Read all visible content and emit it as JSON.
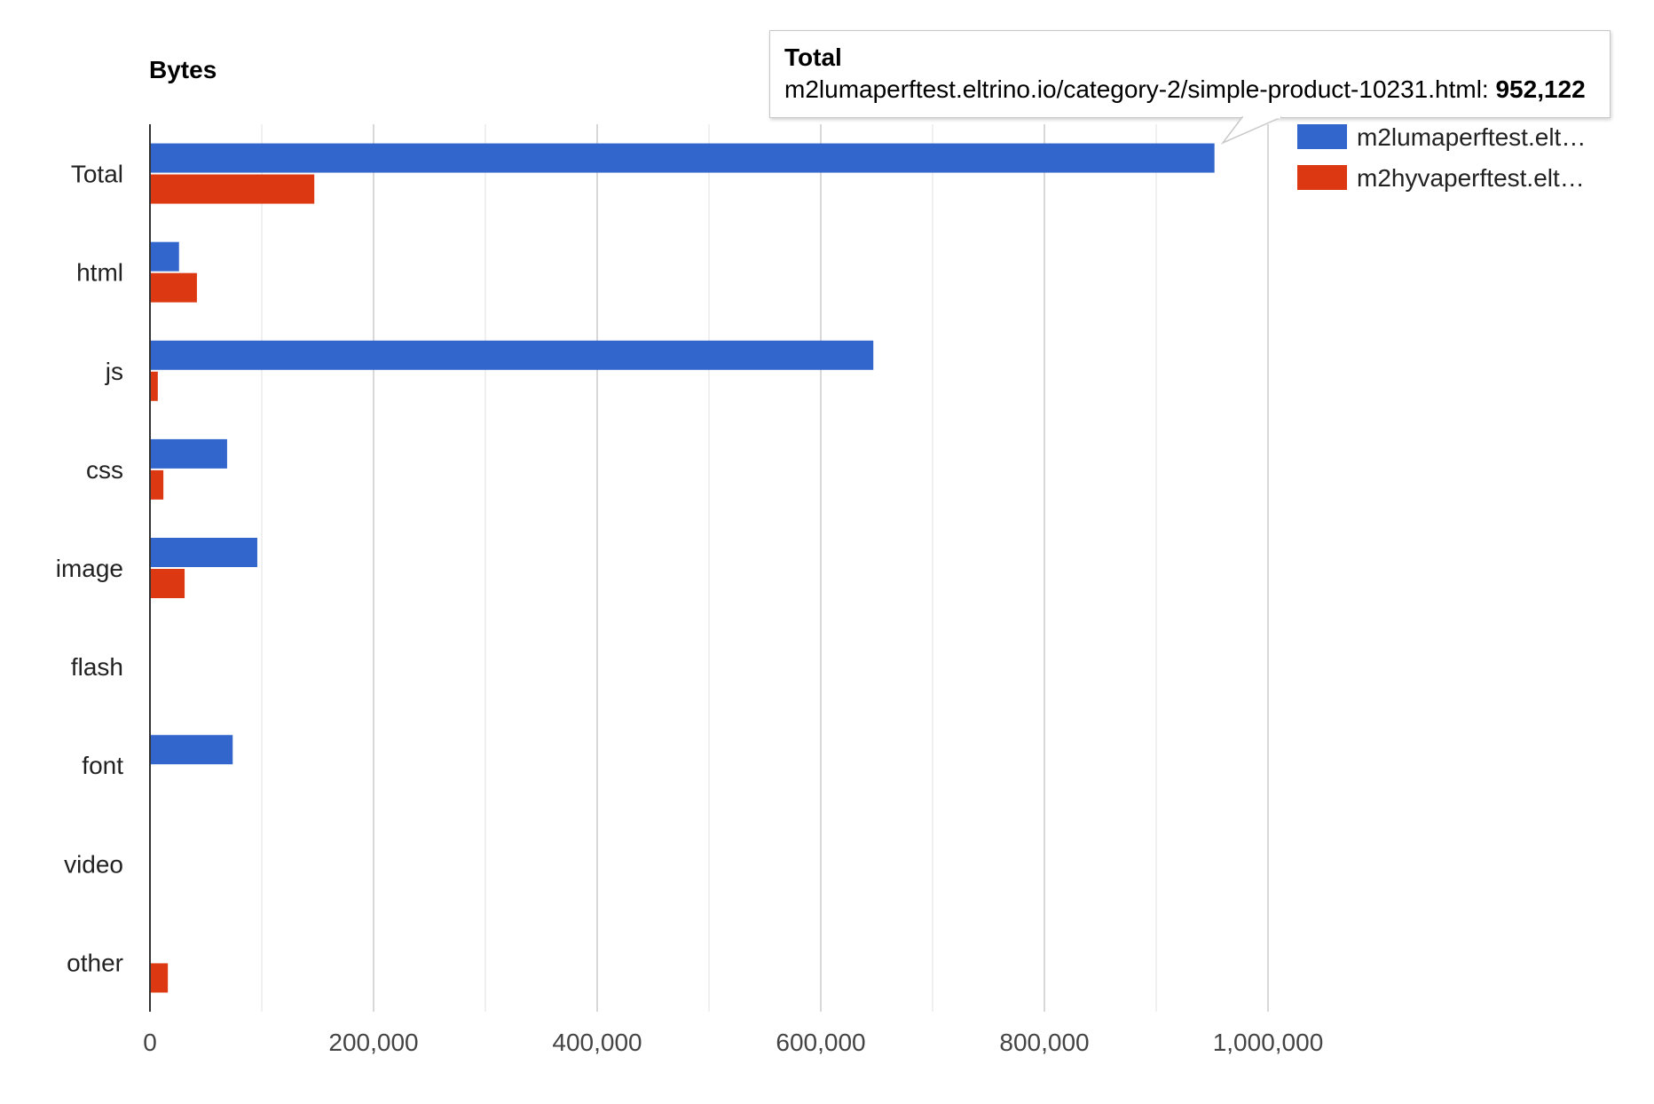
{
  "chart_data": {
    "type": "bar",
    "orientation": "horizontal",
    "title": "Bytes",
    "categories": [
      "Total",
      "html",
      "js",
      "css",
      "image",
      "flash",
      "font",
      "video",
      "other"
    ],
    "series": [
      {
        "name": "m2lumaperftest.elt…",
        "color": "#3366cc",
        "values": [
          952122,
          26000,
          647000,
          69000,
          96000,
          0,
          74000,
          0,
          0
        ]
      },
      {
        "name": "m2hyvaperftest.elt…",
        "color": "#dc3912",
        "values": [
          147000,
          42000,
          7000,
          12000,
          31000,
          0,
          0,
          0,
          16000
        ]
      }
    ],
    "xlim": [
      0,
      1000000
    ],
    "xticks": [
      "0",
      "200,000",
      "400,000",
      "600,000",
      "800,000",
      "1,000,000"
    ],
    "grid": true,
    "legend": "right"
  },
  "tooltip": {
    "title": "Total",
    "label": "m2lumaperftest.eltrino.io/category-2/simple-product-10231.html:",
    "value": "952,122"
  }
}
